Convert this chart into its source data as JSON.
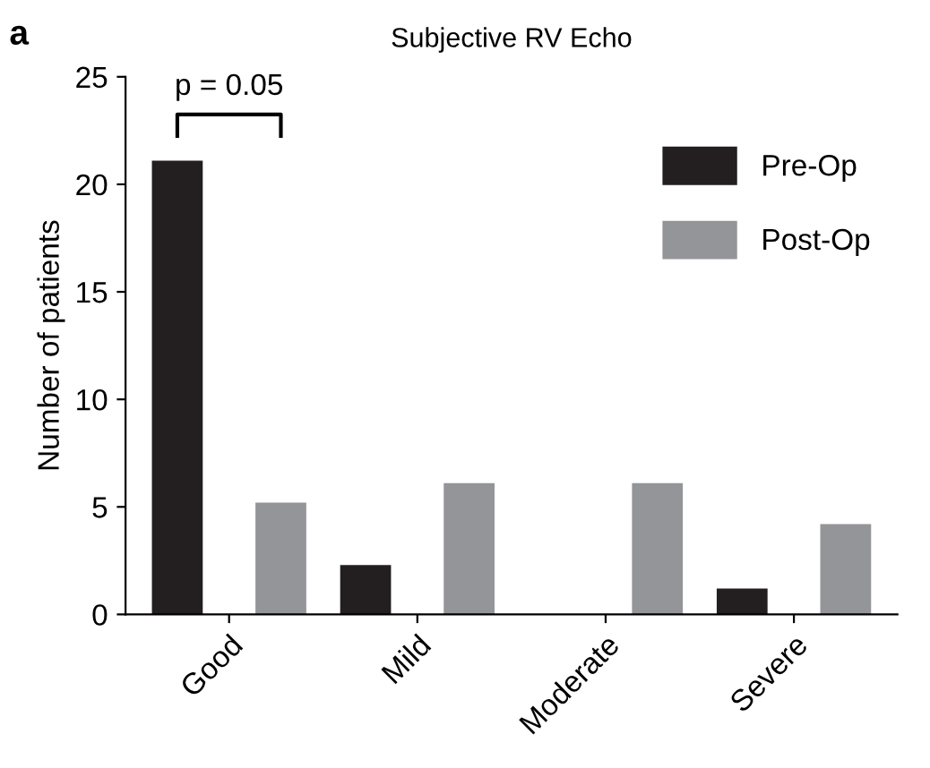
{
  "chart_data": {
    "type": "bar",
    "title": "Subjective RV Echo",
    "ylabel": "Number of patients",
    "categories": [
      "Good",
      "Mild",
      "Moderate",
      "Severe"
    ],
    "series": [
      {
        "name": "Pre-Op",
        "color": "#231f20",
        "values": [
          21.1,
          2.3,
          0,
          1.2
        ]
      },
      {
        "name": "Post-Op",
        "color": "#939598",
        "values": [
          5.2,
          6.1,
          6.1,
          4.2
        ]
      }
    ],
    "ylim": [
      0,
      25
    ],
    "yticks": [
      0,
      5,
      10,
      15,
      20,
      25
    ],
    "grid": false,
    "legend": "top right",
    "annotations": [
      "a",
      "p = 0.05"
    ]
  }
}
